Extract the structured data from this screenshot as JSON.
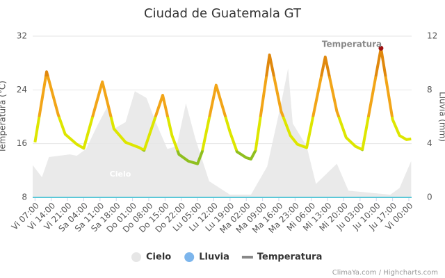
{
  "chart_data": {
    "type": "line",
    "title": "Ciudad de Guatemala GT",
    "y_label": "Temperatura (°C)",
    "y2_label": "Lluvia (mm)",
    "xlim": [
      -1,
      162.2
    ],
    "xticks": [
      {
        "value": 0,
        "label": "Vi 07:00"
      },
      {
        "value": 7,
        "label": "Vi 14:00"
      },
      {
        "value": 14,
        "label": "Vi 21:00"
      },
      {
        "value": 21,
        "label": "Sa 04:00"
      },
      {
        "value": 28,
        "label": "Sa 11:00"
      },
      {
        "value": 35,
        "label": "Sa 18:00"
      },
      {
        "value": 42,
        "label": "Do 01:00"
      },
      {
        "value": 49,
        "label": "Do 08:00"
      },
      {
        "value": 56,
        "label": "Do 15:00"
      },
      {
        "value": 63,
        "label": "Do 22:00"
      },
      {
        "value": 70,
        "label": "Lu 05:00"
      },
      {
        "value": 77,
        "label": "Lu 12:00"
      },
      {
        "value": 84,
        "label": "Lu 19:00"
      },
      {
        "value": 91,
        "label": "Ma 02:00"
      },
      {
        "value": 98,
        "label": "Ma 09:00"
      },
      {
        "value": 105,
        "label": "Ma 16:00"
      },
      {
        "value": 112,
        "label": "Ma 23:00"
      },
      {
        "value": 119,
        "label": "Mi 06:00"
      },
      {
        "value": 126,
        "label": "Mi 13:00"
      },
      {
        "value": 133,
        "label": "Mi 20:00"
      },
      {
        "value": 140,
        "label": "Ju 03:00"
      },
      {
        "value": 147,
        "label": "Ju 10:00"
      },
      {
        "value": 154,
        "label": "Ju 17:00"
      },
      {
        "value": 161,
        "label": "Vi 00:00"
      }
    ],
    "ylim": [
      8,
      32
    ],
    "yticks": [
      8,
      16,
      24,
      32
    ],
    "y2lim": [
      0,
      12
    ],
    "y2ticks": [
      0,
      4,
      8,
      12
    ],
    "grid": true,
    "series": [
      {
        "name": "Cielo",
        "kind": "area",
        "axis": "y2",
        "color": "#e6e6e6",
        "x": [
          -1,
          3,
          6,
          15,
          18,
          22,
          27,
          31,
          34,
          39,
          43,
          48,
          52,
          57,
          61,
          65,
          69,
          75,
          84,
          93,
          100,
          106,
          109,
          111,
          117,
          121,
          130,
          135,
          153,
          157,
          162
        ],
        "values": [
          2.4,
          1.5,
          3.0,
          3.2,
          3.1,
          3.6,
          5.4,
          6.7,
          5.1,
          5.6,
          7.9,
          7.4,
          5.6,
          3.6,
          3.8,
          7.0,
          4.4,
          1.2,
          0.2,
          0.2,
          2.3,
          7.0,
          9.6,
          5.5,
          3.8,
          1.0,
          2.5,
          0.5,
          0.2,
          0.7,
          2.7
        ]
      },
      {
        "name": "Lluvia",
        "kind": "line",
        "axis": "y2",
        "color": "#5bc8d8",
        "legend_color": "#7cb5ec",
        "x": [
          -1,
          162.2
        ],
        "values": [
          0,
          0
        ]
      },
      {
        "name": "Temperatura",
        "kind": "line",
        "color": "#888888",
        "zones": [
          {
            "value": 15,
            "color": "#8fbf1f"
          },
          {
            "value": 20,
            "color": "#dde600"
          },
          {
            "value": 26,
            "color": "#f2a518"
          },
          {
            "color": "#e0880d"
          }
        ],
        "x": [
          0,
          5,
          10,
          13,
          18,
          21,
          29,
          34,
          39,
          45,
          47,
          55,
          59,
          62,
          66,
          70,
          72,
          78,
          84,
          87,
          91,
          93,
          95,
          101,
          106,
          110,
          113,
          117,
          125,
          130,
          134,
          138,
          141,
          149,
          154,
          157,
          160,
          162
        ],
        "values": [
          16.2,
          26.7,
          20.3,
          17.4,
          15.9,
          15.3,
          25.2,
          18.2,
          16.2,
          15.4,
          15.0,
          23.2,
          17.2,
          14.4,
          13.4,
          13.0,
          14.8,
          24.7,
          17.7,
          14.8,
          13.9,
          13.7,
          15.0,
          29.2,
          20.8,
          17.2,
          15.9,
          15.4,
          28.9,
          20.8,
          16.9,
          15.6,
          15.1,
          30.2,
          19.6,
          17.2,
          16.6,
          16.7
        ]
      }
    ],
    "annotations": [
      {
        "text": "Cielo"
      },
      {
        "text": "Temperatura"
      }
    ],
    "credit": "ClimaYa.com / Highcharts.com"
  }
}
